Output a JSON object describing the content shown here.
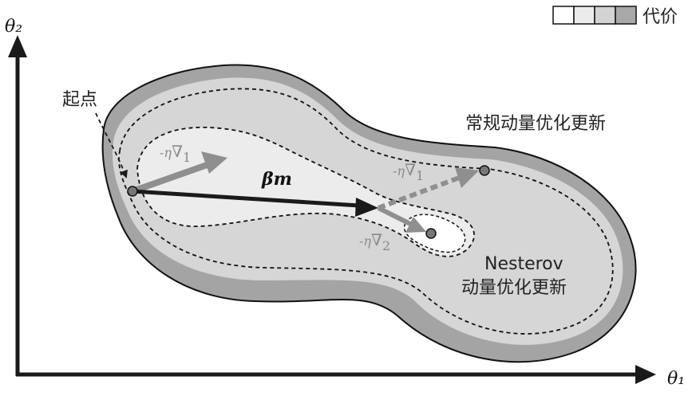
{
  "axes": {
    "x_label": "θ₁",
    "y_label": "θ₂"
  },
  "legend": {
    "label": "代价",
    "swatch_colors": [
      "#ffffff",
      "#ececec",
      "#d3d3d3",
      "#a8a8a8"
    ]
  },
  "colors": {
    "outer_region": "#a4a4a4",
    "middle_region": "#d6d6d6",
    "inner_region": "#ececec",
    "center_region": "#ffffff",
    "momentum_arrow": "#222222",
    "gradient_arrow": "#8f8f8f",
    "contour_line": "#111111"
  },
  "labels": {
    "start_point": "起点",
    "momentum_term": "βm",
    "grad_1_prefix": "-η",
    "grad_1_symbol": "∇",
    "grad_1_sub": "1",
    "grad_1b_prefix": "-η",
    "grad_1b_symbol": "∇",
    "grad_1b_sub": "1",
    "grad_2_prefix": "-η",
    "grad_2_symbol": "∇",
    "grad_2_sub": "2",
    "standard_momentum": "常规动量优化更新",
    "nesterov_line1": "Nesterov",
    "nesterov_line2": "动量优化更新"
  }
}
